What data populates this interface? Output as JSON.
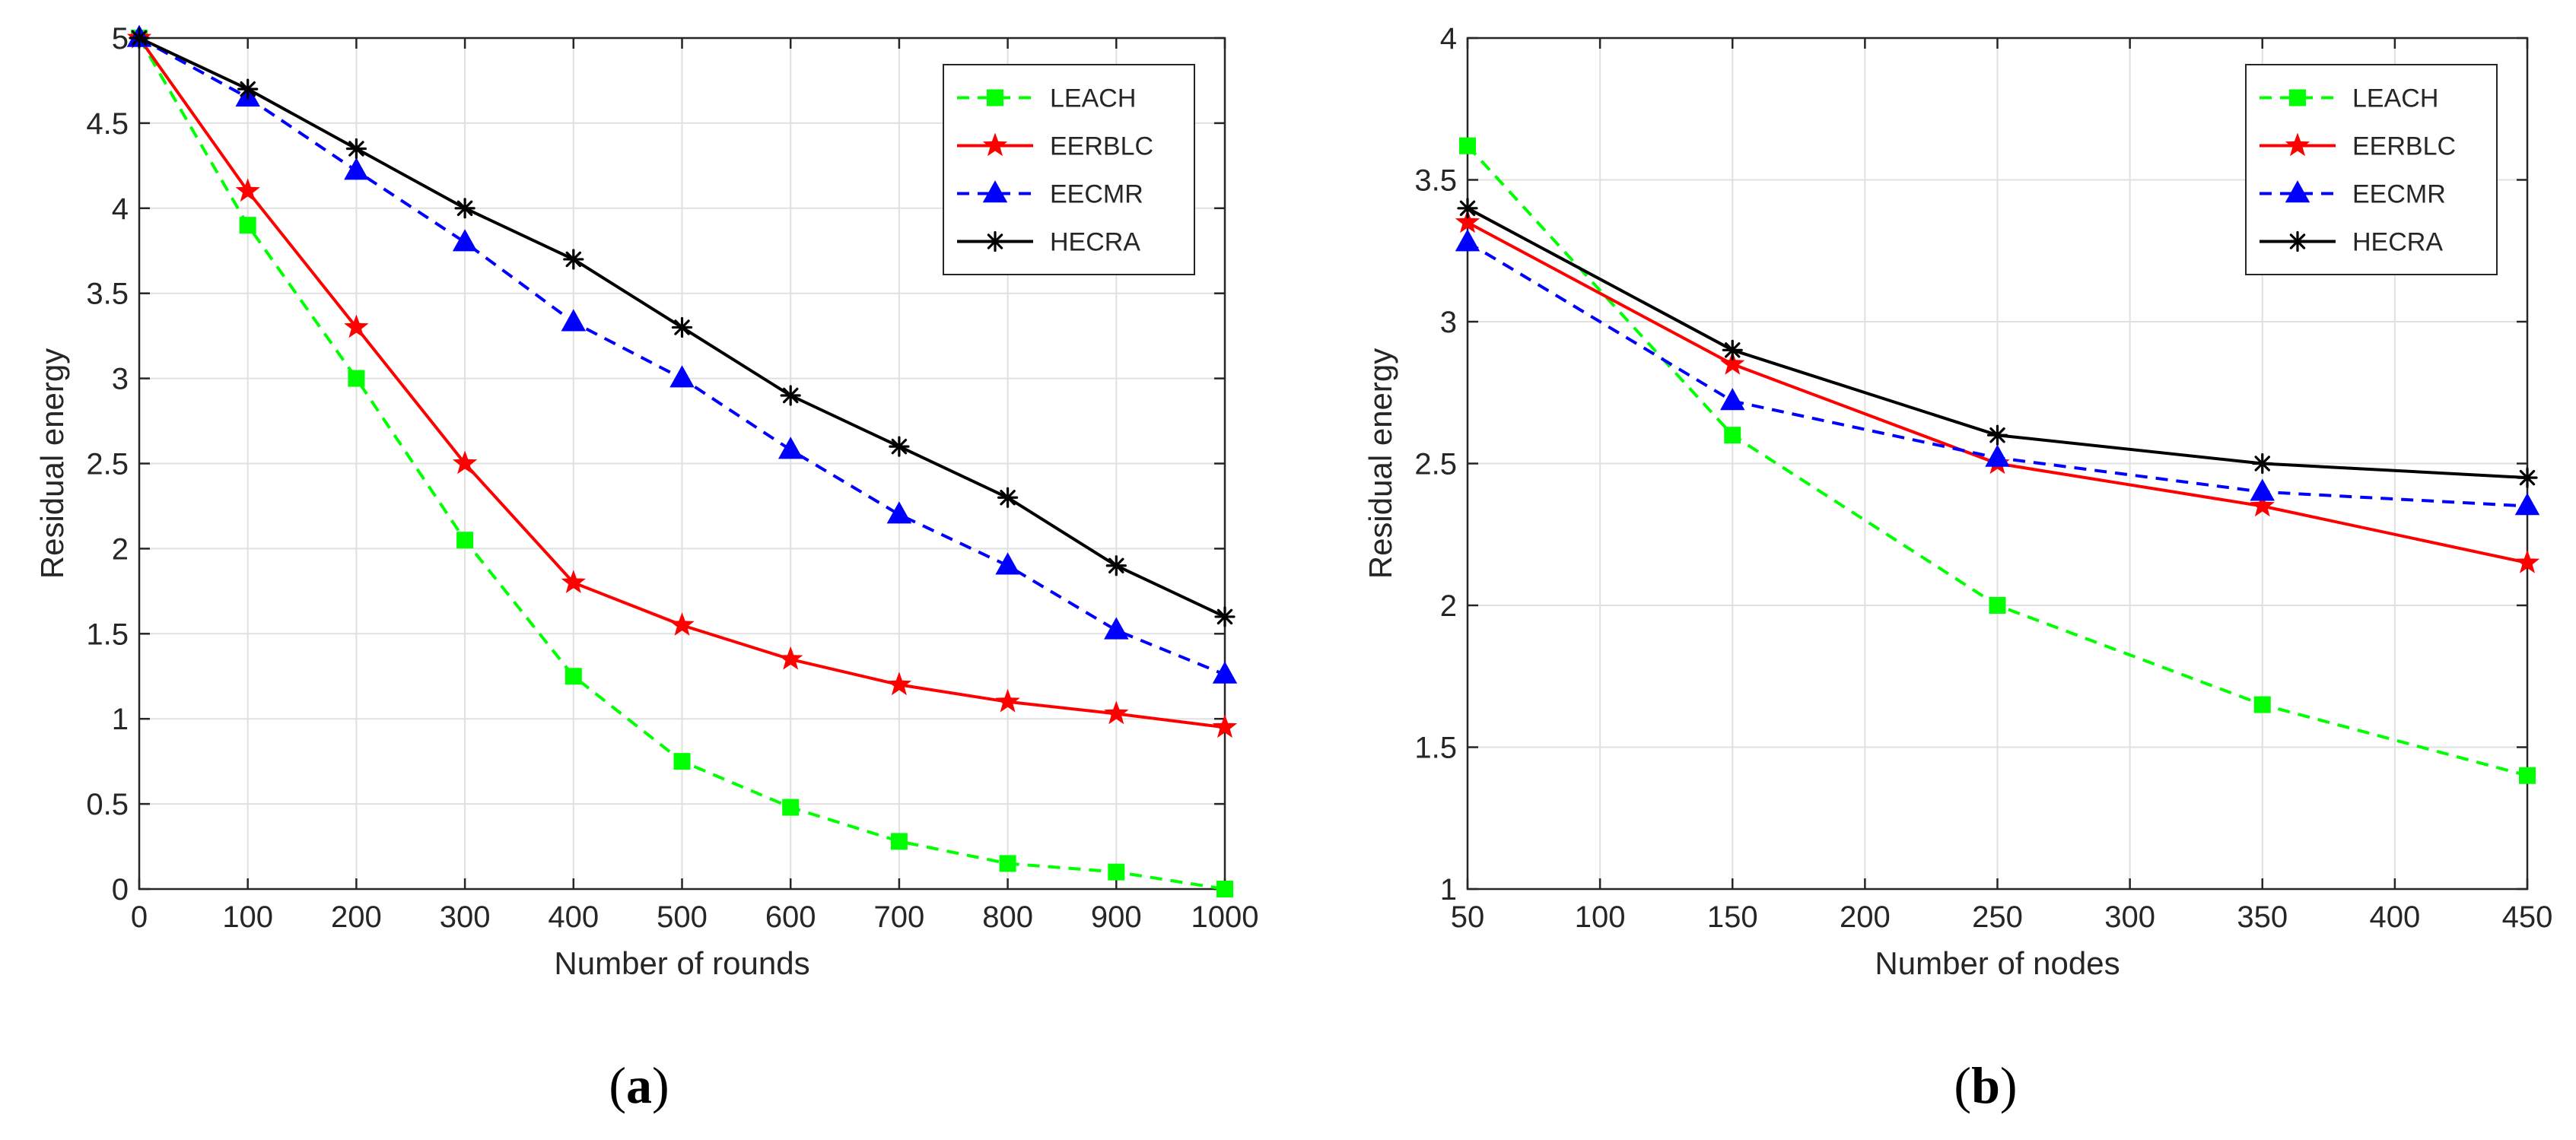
{
  "colors": {
    "leach": "#00ff00",
    "eerblc": "#ff0000",
    "eecmr": "#0000ff",
    "hecra": "#000000",
    "grid": "#e0e0e0",
    "axis": "#262626"
  },
  "chart_data": [
    {
      "id": "a",
      "type": "line",
      "caption": "(a)",
      "caption_bold": "a",
      "title": "",
      "xlabel": "Number of rounds",
      "ylabel": "Residual energy",
      "x": [
        0,
        100,
        200,
        300,
        400,
        500,
        600,
        700,
        800,
        900,
        1000
      ],
      "xlim": [
        0,
        1000
      ],
      "ylim": [
        0,
        5
      ],
      "xticks": [
        0,
        100,
        200,
        300,
        400,
        500,
        600,
        700,
        800,
        900,
        1000
      ],
      "yticks": [
        0,
        0.5,
        1,
        1.5,
        2,
        2.5,
        3,
        3.5,
        4,
        4.5,
        5
      ],
      "ytick_labels": [
        "0",
        "0.5",
        "1",
        "1.5",
        "2",
        "2.5",
        "3",
        "3.5",
        "4",
        "4.5",
        "5"
      ],
      "grid": true,
      "legend_position": "top-right",
      "series": [
        {
          "name": "LEACH",
          "key": "leach",
          "style": "dashed",
          "marker": "square",
          "values": [
            5.0,
            3.9,
            3.0,
            2.05,
            1.25,
            0.75,
            0.48,
            0.28,
            0.15,
            0.1,
            0.0
          ]
        },
        {
          "name": "EERBLC",
          "key": "eerblc",
          "style": "solid",
          "marker": "star",
          "values": [
            5.0,
            4.1,
            3.3,
            2.5,
            1.8,
            1.55,
            1.35,
            1.2,
            1.1,
            1.03,
            0.95
          ]
        },
        {
          "name": "EECMR",
          "key": "eecmr",
          "style": "dashed",
          "marker": "triangle",
          "values": [
            5.0,
            4.65,
            4.22,
            3.8,
            3.33,
            3.0,
            2.58,
            2.2,
            1.9,
            1.52,
            1.26
          ]
        },
        {
          "name": "HECRA",
          "key": "hecra",
          "style": "solid",
          "marker": "asterisk",
          "values": [
            5.0,
            4.7,
            4.35,
            4.0,
            3.7,
            3.3,
            2.9,
            2.6,
            2.3,
            1.9,
            1.6
          ]
        }
      ]
    },
    {
      "id": "b",
      "type": "line",
      "caption": "(b)",
      "caption_bold": "b",
      "title": "",
      "xlabel": "Number of nodes",
      "ylabel": "Residual energy",
      "x": [
        50,
        150,
        250,
        350,
        450
      ],
      "xlim": [
        50,
        450
      ],
      "ylim": [
        1,
        4
      ],
      "xticks": [
        50,
        100,
        150,
        200,
        250,
        300,
        350,
        400,
        450
      ],
      "yticks": [
        1,
        1.5,
        2,
        2.5,
        3,
        3.5,
        4
      ],
      "ytick_labels": [
        "1",
        "1.5",
        "2",
        "2.5",
        "3",
        "3.5",
        "4"
      ],
      "grid": true,
      "legend_position": "top-right",
      "series": [
        {
          "name": "LEACH",
          "key": "leach",
          "style": "dashed",
          "marker": "square",
          "values": [
            3.62,
            2.6,
            2.0,
            1.65,
            1.4
          ]
        },
        {
          "name": "EERBLC",
          "key": "eerblc",
          "style": "solid",
          "marker": "star",
          "values": [
            3.35,
            2.85,
            2.5,
            2.35,
            2.15
          ]
        },
        {
          "name": "EECMR",
          "key": "eecmr",
          "style": "dashed",
          "marker": "triangle",
          "values": [
            3.28,
            2.72,
            2.52,
            2.4,
            2.35
          ]
        },
        {
          "name": "HECRA",
          "key": "hecra",
          "style": "solid",
          "marker": "asterisk",
          "values": [
            3.4,
            2.9,
            2.6,
            2.5,
            2.45
          ]
        }
      ]
    }
  ]
}
